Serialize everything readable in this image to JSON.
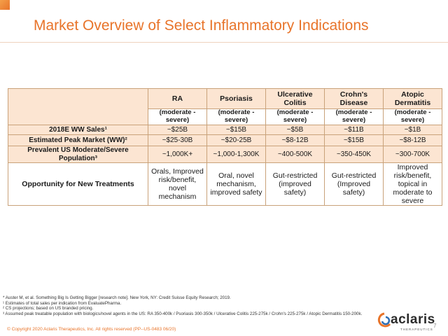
{
  "slide": {
    "title": "Market Overview of Select Inflammatory Indications",
    "page_number": "7",
    "copyright": "© Copyright 2020 Aclaris Therapeutics, Inc. All rights reserved (PP--US-0483 06/20)"
  },
  "logo": {
    "word": "aclaris",
    "sub": "THERAPEUTICS",
    "colors": {
      "orange": "#e8742a",
      "blue": "#2e6fb5"
    }
  },
  "table": {
    "columns": [
      "RA",
      "Psoriasis",
      "Ulcerative Colitis",
      "Crohn's Disease",
      "Atopic Dermatitis"
    ],
    "severity": [
      "(moderate - severe)",
      "(moderate - severe)",
      "(moderate - severe)",
      "(moderate - severe)",
      "(moderate - severe)"
    ],
    "rows": [
      {
        "label": "2018E WW Sales¹",
        "values": [
          "~$25B",
          "~$15B",
          "~$5B",
          "~$11B",
          "~$1B"
        ]
      },
      {
        "label": "Estimated Peak Market (WW)²",
        "values": [
          "~$25-30B",
          "~$20-25B",
          "~$8-12B",
          "~$15B",
          "~$8-12B"
        ]
      },
      {
        "label": "Prevalent US Moderate/Severe Population³",
        "values": [
          "~1,000K+",
          "~1,000-1,300K",
          "~400-500K",
          "~350-450K",
          "~300-700K"
        ]
      },
      {
        "label": "Opportunity for New Treatments",
        "values": [
          "Orals, Improved risk/benefit, novel mechanism",
          "Oral, novel mechanism, improved safety",
          "Gut-restricted (improved safety)",
          "Gut-restricted (Improved safety)",
          "Improved risk/benefit, topical in moderate to severe"
        ]
      }
    ]
  },
  "footnotes": [
    "* Auster M, et al. Something Big Is Getting Bigger [research note]. New York, NY: Credit Suisse Equity Research; 2019.",
    "¹ Estimates of total sales per indication from EvaluatePharma.",
    "² CS projections; based on US branded pricing.",
    "³ Assumed peak treatable population with biologics/novel agents in the US: RA 350-400k / Psoriasis 300-350k / Ulcerative Colitis 225-275k / Crohn's 225-275k / Atopic Dermatitis 150-200k."
  ],
  "theme": {
    "accent": "#e8742a",
    "table_fill": "#fce5d2",
    "table_border": "#c9a27a"
  }
}
